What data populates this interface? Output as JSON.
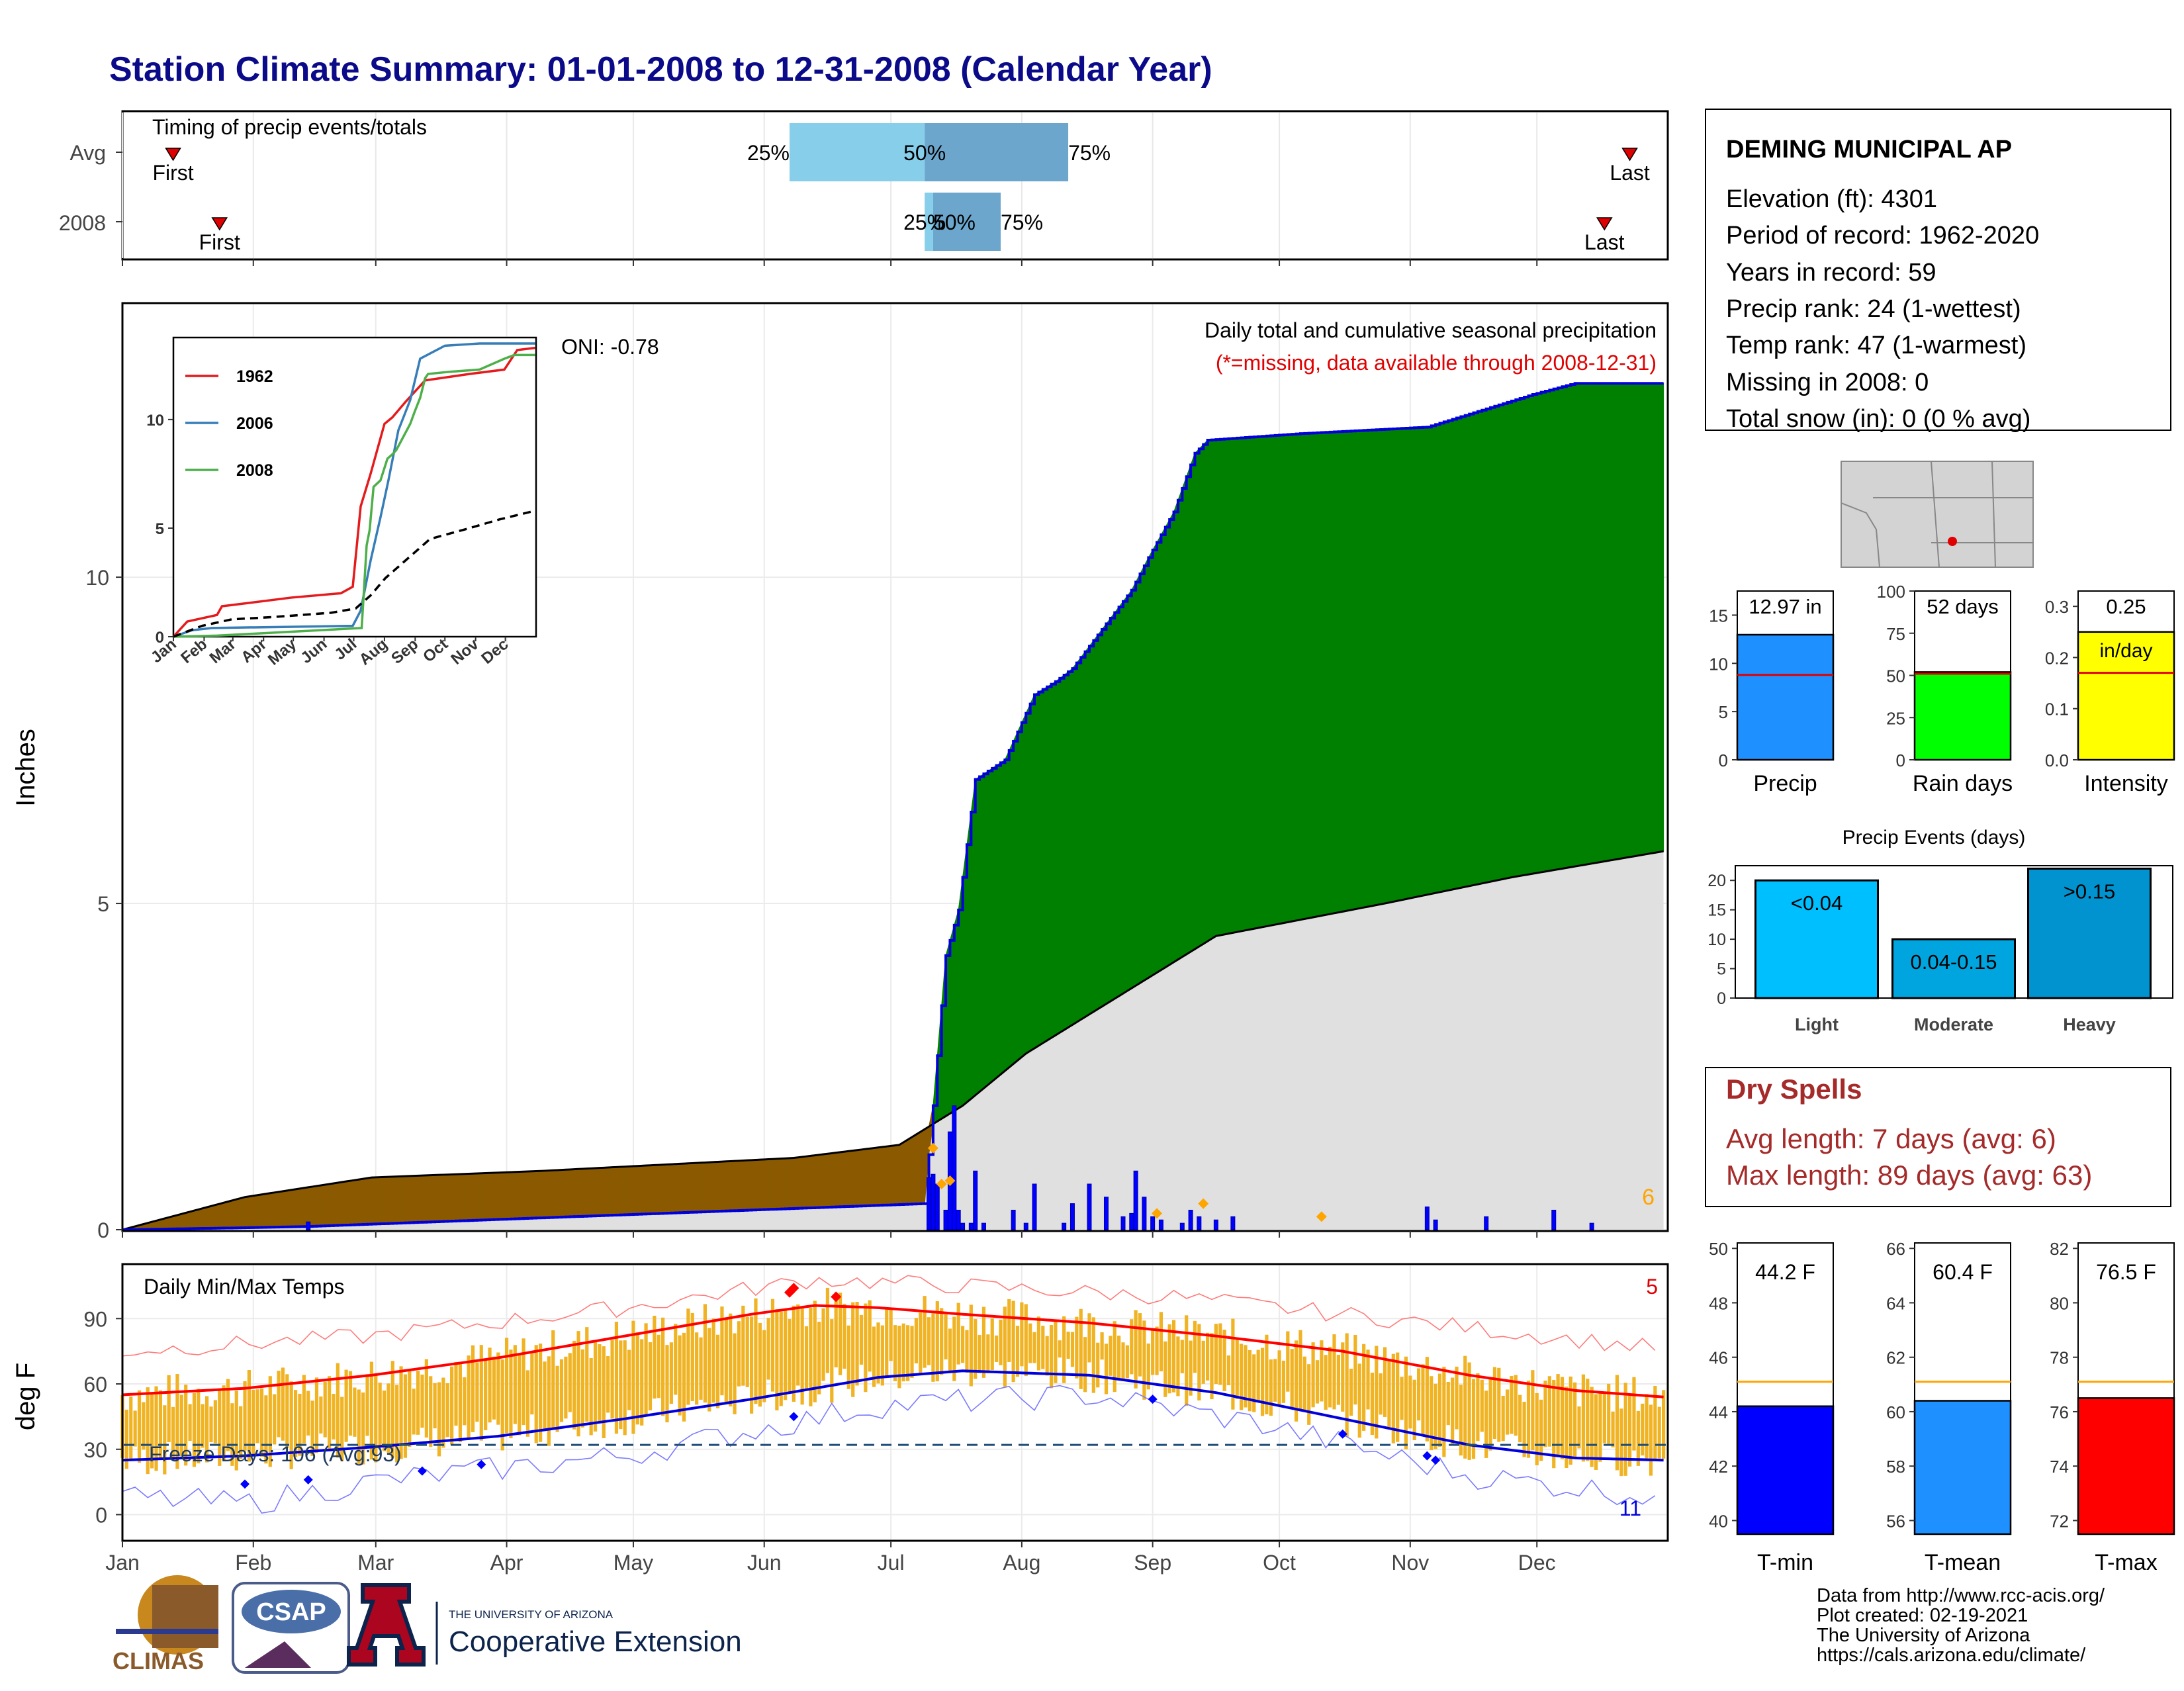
{
  "title": "Station Climate Summary: 01-01-2008 to 12-31-2008 (Calendar Year)",
  "timing": {
    "label": "Timing of precip events/totals",
    "rows": [
      {
        "name": "Avg",
        "first_doy": 13,
        "last_doy": 358,
        "p25_doy": 159,
        "p50_doy": 191,
        "p75_doy": 225,
        "first_label": "First",
        "last_label": "Last",
        "p25_label": "25%",
        "p50_label": "50%",
        "p75_label": "75%"
      },
      {
        "name": "2008",
        "first_doy": 24,
        "last_doy": 352,
        "p25_doy": 191,
        "p50_doy": 193,
        "p75_doy": 209,
        "first_label": "First",
        "last_label": "Last",
        "p25_label": "25%",
        "p50_label": "50%",
        "p75_label": "75%"
      }
    ]
  },
  "precip_panel": {
    "ylabel": "Inches",
    "yticks": [
      0,
      5,
      10
    ],
    "annotation_title": "Daily total and cumulative seasonal precipitation",
    "annotation_note": "(*=missing, data available through 2008-12-31)",
    "oni": "ONI: -0.78",
    "corner_count": "6"
  },
  "inset": {
    "xticks": [
      "Jan",
      "Feb",
      "Mar",
      "Apr",
      "May",
      "Jun",
      "Jul",
      "Aug",
      "Sep",
      "Oct",
      "Nov",
      "Dec"
    ],
    "yticks": [
      "0",
      "5",
      "10"
    ],
    "legend": [
      {
        "name": "1962",
        "color": "#e41a1c"
      },
      {
        "name": "2006",
        "color": "#377eb8"
      },
      {
        "name": "2008",
        "color": "#4daf4a"
      }
    ]
  },
  "temp_panel": {
    "ylabel": "deg F",
    "title": "Daily Min/Max Temps",
    "freeze_label": "Freeze Days: 106 (Avg:93)",
    "hot_count": "5",
    "cold_count": "11",
    "yticks": [
      0,
      30,
      60,
      90
    ]
  },
  "months": [
    "Jan",
    "Feb",
    "Mar",
    "Apr",
    "May",
    "Jun",
    "Jul",
    "Aug",
    "Sep",
    "Oct",
    "Nov",
    "Dec"
  ],
  "station": {
    "name": "DEMING MUNICIPAL AP",
    "lines": [
      "Elevation (ft): 4301",
      "Period of record: 1962-2020",
      "Years in record: 59",
      "Precip rank: 24 (1-wettest)",
      "Temp rank: 47 (1-warmest)",
      "Missing in 2008: 0",
      "Total snow (in): 0 (0 % avg)"
    ]
  },
  "dry_spells": {
    "title": "Dry Spells",
    "line1": "Avg length: 7 days (avg: 6)",
    "line2": "Max length: 89 days (avg: 63)"
  },
  "events": {
    "title": "Precip Events (days)",
    "yticks": [
      "0",
      "5",
      "10",
      "15",
      "20"
    ]
  },
  "footer": {
    "line1": "Data from http://www.rcc-acis.org/",
    "line2": "Plot created: 02-19-2021",
    "line3": "The University of Arizona",
    "line4": "https://cals.arizona.edu/climate/",
    "logo_climas": "CLIMAS",
    "logo_csap": "CSAP",
    "logo_ua_small": "THE UNIVERSITY OF ARIZONA",
    "logo_ua_big": "Cooperative Extension"
  },
  "chart_data": [
    {
      "type": "area",
      "title": "Daily total and cumulative seasonal precipitation",
      "ylabel": "Inches",
      "ylim": [
        0,
        14.2
      ],
      "cumulative_2008": {
        "doy": [
          1,
          30,
          45,
          191,
          193,
          196,
          199,
          203,
          210,
          217,
          222,
          226,
          240,
          244,
          250,
          255,
          258,
          280,
          310,
          335,
          345,
          366
        ],
        "inches": [
          0,
          0.03,
          0.05,
          0.4,
          1.9,
          4.2,
          4.9,
          6.9,
          7.2,
          8.2,
          8.4,
          8.6,
          9.8,
          10.3,
          11.0,
          11.9,
          12.1,
          12.2,
          12.3,
          12.8,
          12.97,
          12.97
        ]
      },
      "cumulative_avg": {
        "doy": [
          1,
          30,
          60,
          100,
          130,
          160,
          185,
          200,
          215,
          230,
          245,
          260,
          300,
          330,
          366
        ],
        "inches": [
          0,
          0.5,
          0.8,
          0.9,
          1.0,
          1.1,
          1.3,
          1.9,
          2.7,
          3.3,
          3.9,
          4.5,
          5.0,
          5.4,
          5.8
        ]
      },
      "daily_2008": {
        "doy": [
          45,
          192,
          193,
          194,
          196,
          197,
          198,
          199,
          200,
          202,
          203,
          205,
          212,
          215,
          217,
          224,
          226,
          230,
          234,
          238,
          240,
          241,
          243,
          245,
          247,
          252,
          254,
          256,
          260,
          264,
          310,
          312,
          324,
          340,
          349
        ],
        "inches": [
          0.12,
          0.8,
          0.85,
          0.7,
          0.3,
          1.5,
          1.9,
          0.3,
          0.1,
          0.1,
          0.9,
          0.1,
          0.3,
          0.1,
          0.7,
          0.1,
          0.4,
          0.7,
          0.5,
          0.2,
          0.25,
          0.9,
          0.5,
          0.2,
          0.15,
          0.1,
          0.3,
          0.2,
          0.15,
          0.2,
          0.35,
          0.15,
          0.2,
          0.3,
          0.1
        ]
      }
    },
    {
      "type": "line",
      "title": "inset cumulative precipitation",
      "ylim": [
        0,
        13.5
      ],
      "series": [
        {
          "name": "1962",
          "doy": [
            1,
            15,
            45,
            50,
            120,
            170,
            182,
            190,
            200,
            214,
            222,
            235,
            255,
            300,
            335,
            348,
            366
          ],
          "inches": [
            0,
            0.7,
            1.0,
            1.4,
            1.8,
            2.0,
            2.3,
            6.0,
            7.5,
            9.8,
            10.1,
            10.8,
            11.8,
            12.1,
            12.3,
            13.2,
            13.3
          ]
        },
        {
          "name": "2006",
          "doy": [
            1,
            20,
            40,
            182,
            190,
            200,
            210,
            218,
            228,
            240,
            250,
            275,
            310,
            366
          ],
          "inches": [
            0,
            0.3,
            0.4,
            0.5,
            1.2,
            3.5,
            5.5,
            7.2,
            9.5,
            10.9,
            12.8,
            13.4,
            13.5,
            13.5
          ]
        },
        {
          "name": "2008",
          "doy": [
            1,
            30,
            45,
            191,
            193,
            196,
            199,
            203,
            210,
            217,
            222,
            226,
            240,
            244,
            250,
            255,
            258,
            280,
            310,
            335,
            345,
            366
          ],
          "inches": [
            0,
            0.03,
            0.05,
            0.4,
            1.9,
            4.2,
            4.9,
            6.9,
            7.2,
            8.2,
            8.4,
            8.6,
            9.8,
            10.3,
            11.0,
            11.9,
            12.1,
            12.2,
            12.3,
            12.8,
            12.97,
            12.97
          ]
        },
        {
          "name": "avg",
          "doy": [
            1,
            30,
            60,
            100,
            130,
            160,
            185,
            200,
            215,
            230,
            245,
            260,
            300,
            330,
            366
          ],
          "inches": [
            0,
            0.5,
            0.8,
            0.9,
            1.0,
            1.1,
            1.3,
            1.9,
            2.7,
            3.3,
            3.9,
            4.5,
            5.0,
            5.4,
            5.8
          ]
        }
      ]
    },
    {
      "type": "line",
      "title": "Daily Min/Max Temps",
      "ylabel": "deg F",
      "ylim": [
        -12,
        115
      ],
      "avg_max": {
        "doy": [
          1,
          30,
          60,
          90,
          120,
          150,
          165,
          180,
          200,
          230,
          260,
          290,
          320,
          345,
          366
        ],
        "degF": [
          55,
          58,
          64,
          72,
          82,
          92,
          96,
          95,
          92,
          88,
          82,
          75,
          64,
          57,
          54
        ]
      },
      "avg_min": {
        "doy": [
          1,
          30,
          60,
          90,
          120,
          150,
          180,
          200,
          230,
          260,
          290,
          320,
          345,
          366
        ],
        "degF": [
          25,
          27,
          31,
          36,
          44,
          53,
          63,
          66,
          64,
          56,
          44,
          32,
          26,
          25
        ]
      },
      "record_high": {
        "doy": [
          1,
          60,
          120,
          165,
          200,
          250,
          300,
          366
        ],
        "degF": [
          75,
          82,
          95,
          108,
          105,
          100,
          90,
          76
        ]
      },
      "record_low": {
        "doy": [
          1,
          30,
          60,
          120,
          180,
          230,
          270,
          320,
          366
        ],
        "degF": [
          8,
          5,
          15,
          27,
          50,
          55,
          42,
          18,
          8
        ]
      },
      "freeze_line": 32
    },
    {
      "type": "bar",
      "title": "annual summary bars",
      "categories": [
        "Precip",
        "Rain days",
        "Intensity"
      ],
      "values": [
        12.97,
        52,
        0.25
      ],
      "averages": [
        8.8,
        51,
        0.17
      ],
      "ylims": [
        [
          0,
          17.5
        ],
        [
          0,
          100
        ],
        [
          0,
          0.33
        ]
      ],
      "yticks": [
        [
          "0",
          "5",
          "10",
          "15"
        ],
        [
          "0",
          "25",
          "50",
          "75",
          "100"
        ],
        [
          "0.0",
          "0.1",
          "0.2",
          "0.3"
        ]
      ],
      "value_labels": [
        "12.97 in",
        "52 days",
        "0.25"
      ],
      "unit_label_intensity": "in/day",
      "colors": [
        "#1e90ff",
        "#00ff00",
        "#ffff00"
      ]
    },
    {
      "type": "bar",
      "title": "Precip Events (days)",
      "categories": [
        "Light",
        "Moderate",
        "Heavy"
      ],
      "values": [
        20,
        10,
        22
      ],
      "labels": [
        "<0.04",
        "0.04-0.15",
        ">0.15"
      ],
      "ylim": [
        0,
        22.5
      ],
      "colors": [
        "#00bfff",
        "#00a5e0",
        "#0093cf"
      ]
    },
    {
      "type": "bar",
      "title": "temperature summary bars",
      "categories": [
        "T-min",
        "T-mean",
        "T-max"
      ],
      "values": [
        44.2,
        60.4,
        76.5
      ],
      "averages": [
        45.1,
        61.1,
        77.1
      ],
      "ylims": [
        [
          39.5,
          50.2
        ],
        [
          55.5,
          66.2
        ],
        [
          71.5,
          82.2
        ]
      ],
      "yticks": [
        [
          "40",
          "42",
          "44",
          "46",
          "48",
          "50"
        ],
        [
          "56",
          "58",
          "60",
          "62",
          "64",
          "66"
        ],
        [
          "72",
          "74",
          "76",
          "78",
          "80",
          "82"
        ]
      ],
      "value_labels": [
        "44.2 F",
        "60.4 F",
        "76.5 F"
      ],
      "colors": [
        "#0000ff",
        "#1e90ff",
        "#ff0000"
      ]
    }
  ]
}
